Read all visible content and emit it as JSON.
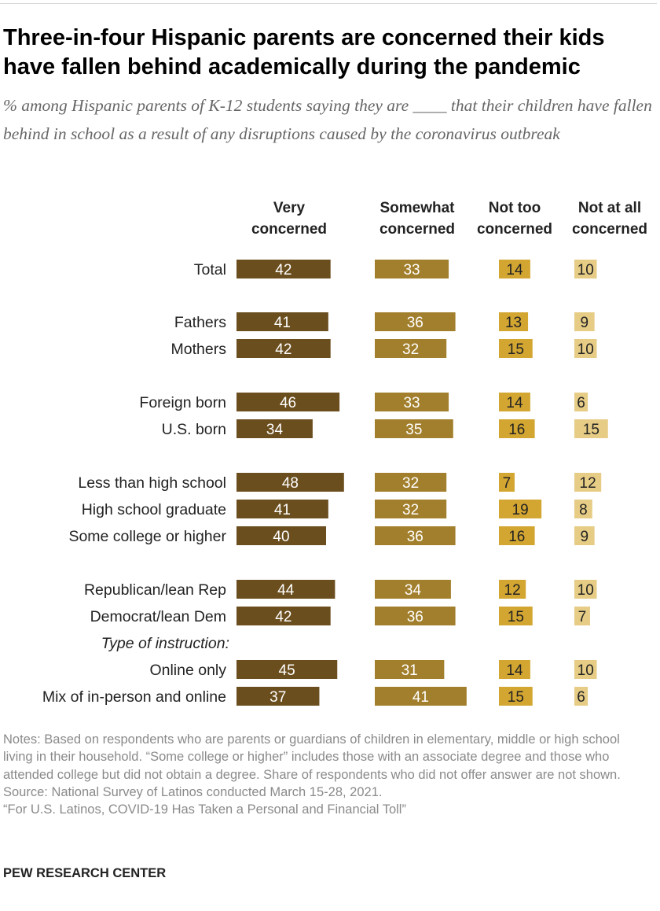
{
  "title": "Three-in-four Hispanic parents are concerned their kids have fallen behind academically during the pandemic",
  "subtitle": "% among Hispanic parents of K-12 students saying they are ____ that their children have fallen behind in school as a result of any disruptions caused by the coronavirus outbreak",
  "chart_data": {
    "type": "bar",
    "orientation": "horizontal",
    "layout": "small-multiples",
    "title": "Three-in-four Hispanic parents are concerned their kids have fallen behind academically during the pandemic",
    "columns": [
      {
        "name": "Very concerned",
        "label_lines": [
          "Very",
          "concerned"
        ],
        "color": "#6b4e1e"
      },
      {
        "name": "Somewhat concerned",
        "label_lines": [
          "Somewhat",
          "concerned"
        ],
        "color": "#a27f2c"
      },
      {
        "name": "Not too concerned",
        "label_lines": [
          "Not too",
          "concerned"
        ],
        "color": "#d3a632"
      },
      {
        "name": "Not at all concerned",
        "label_lines": [
          "Not at all",
          "concerned"
        ],
        "color": "#e6cc85"
      }
    ],
    "rows": [
      {
        "label": "Total",
        "group": 0,
        "values": [
          42,
          33,
          14,
          10
        ]
      },
      {
        "label": "Fathers",
        "group": 1,
        "values": [
          41,
          36,
          13,
          9
        ]
      },
      {
        "label": "Mothers",
        "group": 1,
        "values": [
          42,
          32,
          15,
          10
        ]
      },
      {
        "label": "Foreign born",
        "group": 2,
        "values": [
          46,
          33,
          14,
          6
        ]
      },
      {
        "label": "U.S. born",
        "group": 2,
        "values": [
          34,
          35,
          16,
          15
        ]
      },
      {
        "label": "Less than high school",
        "group": 3,
        "values": [
          48,
          32,
          7,
          12
        ]
      },
      {
        "label": "High school graduate",
        "group": 3,
        "values": [
          41,
          32,
          19,
          8
        ]
      },
      {
        "label": "Some college or higher",
        "group": 3,
        "values": [
          40,
          36,
          16,
          9
        ]
      },
      {
        "label": "Republican/lean Rep",
        "group": 4,
        "values": [
          44,
          34,
          12,
          10
        ]
      },
      {
        "label": "Democrat/lean Dem",
        "group": 4,
        "values": [
          42,
          36,
          15,
          7
        ]
      },
      {
        "header": "Type of instruction:",
        "group": 4
      },
      {
        "label": "Online only",
        "group": 4,
        "values": [
          45,
          31,
          14,
          10
        ]
      },
      {
        "label": "Mix of in-person and online",
        "group": 4,
        "values": [
          37,
          41,
          15,
          6
        ]
      }
    ],
    "xlabel": "",
    "ylabel": "",
    "units": "%"
  },
  "notes": [
    "Notes: Based on respondents who are parents or guardians of children in elementary, middle or high school living in their household. “Some college or higher” includes those with an associate degree and those who attended college but did not obtain a degree. Share of respondents who did not offer answer are not shown.",
    "Source: National Survey of Latinos conducted March 15-28, 2021.",
    "“For U.S. Latinos, COVID-19 Has Taken a Personal and Financial Toll”"
  ],
  "brand": "PEW RESEARCH CENTER"
}
